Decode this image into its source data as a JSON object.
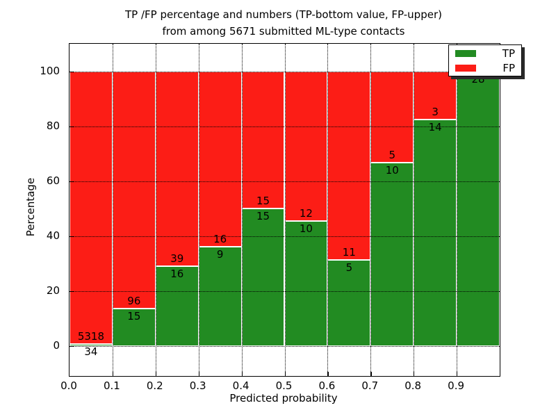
{
  "title": {
    "line1": "TP /FP percentage and numbers (TP-bottom value, FP-upper)",
    "line2": "from among 5671 submitted ML-type contacts"
  },
  "axes": {
    "xlabel": "Predicted probability",
    "ylabel": "Percentage"
  },
  "chart_data": {
    "type": "bar",
    "stacked": true,
    "title": "TP /FP percentage and numbers (TP-bottom value, FP-upper)\nfrom among 5671 submitted ML-type contacts",
    "xlabel": "Predicted probability",
    "ylabel": "Percentage",
    "xlim": [
      0.0,
      1.0
    ],
    "ylim": [
      -11,
      110
    ],
    "x_ticks": [
      "0.0",
      "0.1",
      "0.2",
      "0.3",
      "0.4",
      "0.5",
      "0.6",
      "0.7",
      "0.8",
      "0.9"
    ],
    "y_ticks": [
      0,
      20,
      40,
      60,
      80,
      100
    ],
    "grid": "dotted",
    "legend_position": "upper right",
    "bin_width": 0.1,
    "categories": [
      "0.0-0.1",
      "0.1-0.2",
      "0.2-0.3",
      "0.3-0.4",
      "0.4-0.5",
      "0.5-0.6",
      "0.6-0.7",
      "0.7-0.8",
      "0.8-0.9",
      "0.9-1.0"
    ],
    "series": [
      {
        "name": "TP",
        "role": "bottom",
        "color": "#228b22",
        "counts": [
          34,
          15,
          16,
          9,
          15,
          10,
          5,
          10,
          14,
          28
        ],
        "percent": [
          0.64,
          13.51,
          29.09,
          36.0,
          50.0,
          45.45,
          31.25,
          66.67,
          82.35,
          100.0
        ]
      },
      {
        "name": "FP",
        "role": "top",
        "color": "#fc1d16",
        "counts": [
          5318,
          96,
          39,
          16,
          15,
          12,
          11,
          5,
          3,
          0
        ],
        "percent": [
          99.36,
          86.49,
          70.91,
          64.0,
          50.0,
          54.55,
          68.75,
          33.33,
          17.65,
          0.0
        ]
      }
    ]
  },
  "colors": {
    "tp": "#228b22",
    "fp": "#fc1d16",
    "grid": "#000000",
    "text": "#000000",
    "background": "#ffffff"
  }
}
